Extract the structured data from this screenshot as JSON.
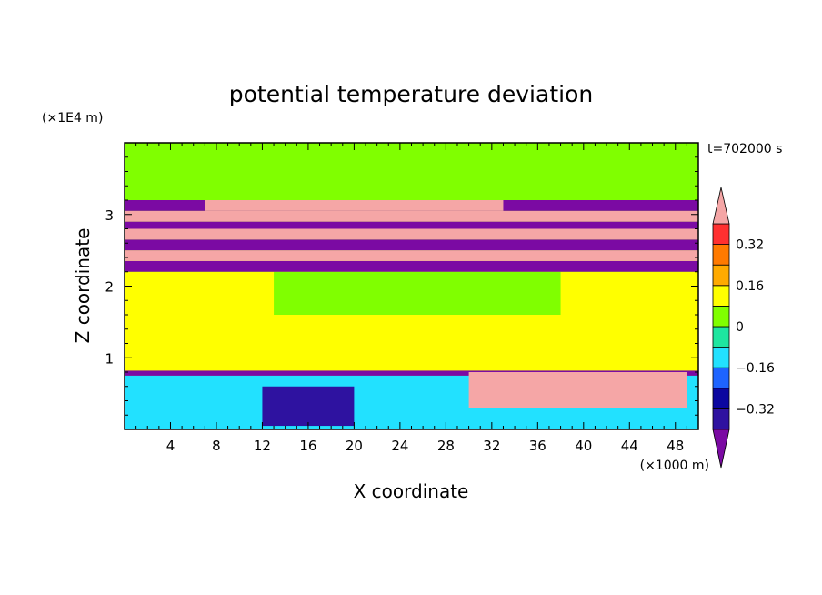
{
  "chart_data": {
    "type": "heatmap",
    "title": "potential temperature deviation",
    "time_label": "t=702000 s",
    "xlabel": "X coordinate",
    "ylabel": "Z coordinate",
    "x_unit": "(×1000 m)",
    "y_unit": "(×1E4 m)",
    "xlim": [
      0,
      50
    ],
    "ylim": [
      0,
      4
    ],
    "x_ticks": [
      "4",
      "8",
      "12",
      "16",
      "20",
      "24",
      "28",
      "32",
      "36",
      "40",
      "44",
      "48"
    ],
    "y_ticks": [
      "1",
      "2",
      "3"
    ],
    "colorbar": {
      "tick_labels": [
        "0.32",
        "0.16",
        "0",
        "−0.16",
        "−0.32"
      ],
      "levels": [
        -0.4,
        -0.32,
        -0.24,
        -0.16,
        -0.08,
        0,
        0.08,
        0.16,
        0.24,
        0.32,
        0.4
      ],
      "colors": [
        "#7b0aa3",
        "#2e12a0",
        "#0b07a0",
        "#1e64ff",
        "#22e1ff",
        "#1ee6a0",
        "#80ff00",
        "#ffff00",
        "#ffaa00",
        "#ff7a00",
        "#ff3030",
        "#f5a6a6"
      ],
      "extend": "both"
    },
    "regions": [
      {
        "x0": 0,
        "x1": 50,
        "z0": 0,
        "z1": 4,
        "v": 0.04
      },
      {
        "x0": 0,
        "x1": 50,
        "z0": 0.8,
        "z1": 2.2,
        "v": 0.1
      },
      {
        "x0": 13,
        "x1": 38,
        "z0": 1.6,
        "z1": 2.2,
        "v": 0.04
      },
      {
        "x0": 0,
        "x1": 50,
        "z0": 2.2,
        "z1": 2.35,
        "v": -0.45
      },
      {
        "x0": 0,
        "x1": 50,
        "z0": 2.35,
        "z1": 2.5,
        "v": 0.45
      },
      {
        "x0": 0,
        "x1": 50,
        "z0": 2.5,
        "z1": 2.65,
        "v": -0.45
      },
      {
        "x0": 0,
        "x1": 50,
        "z0": 2.65,
        "z1": 2.8,
        "v": 0.45
      },
      {
        "x0": 0,
        "x1": 50,
        "z0": 2.8,
        "z1": 2.9,
        "v": -0.45
      },
      {
        "x0": 0,
        "x1": 50,
        "z0": 2.9,
        "z1": 3.05,
        "v": 0.45
      },
      {
        "x0": 0,
        "x1": 50,
        "z0": 3.05,
        "z1": 3.2,
        "v": -0.45
      },
      {
        "x0": 7,
        "x1": 33,
        "z0": 3.05,
        "z1": 3.2,
        "v": 0.45
      },
      {
        "x0": 0,
        "x1": 50,
        "z0": 0.75,
        "z1": 0.82,
        "v": -0.45
      },
      {
        "x0": 0,
        "x1": 50,
        "z0": 0,
        "z1": 0.75,
        "v": -0.1
      },
      {
        "x0": 30,
        "x1": 49,
        "z0": 0.3,
        "z1": 0.8,
        "v": 0.45
      },
      {
        "x0": 12,
        "x1": 20,
        "z0": 0.05,
        "z1": 0.6,
        "v": -0.35
      }
    ]
  }
}
